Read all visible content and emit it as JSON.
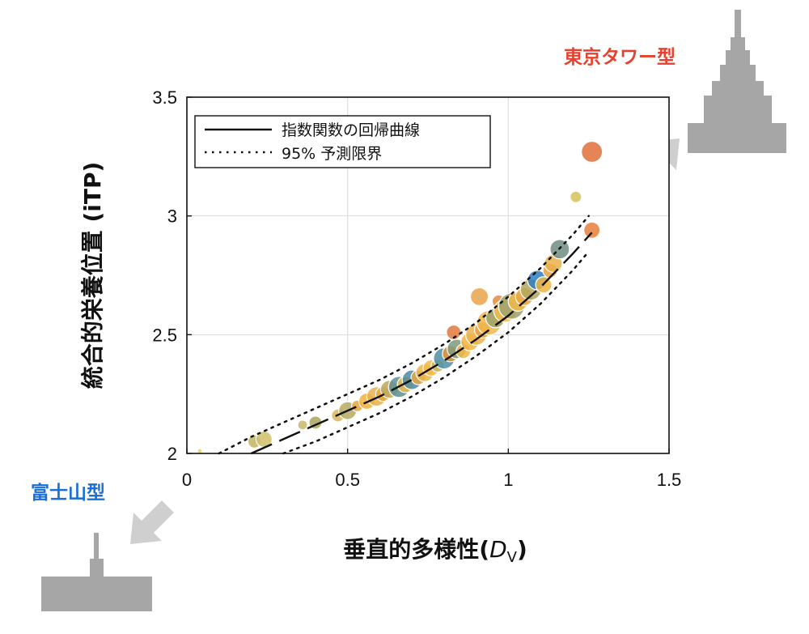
{
  "chart_data": {
    "type": "scatter",
    "xlabel": "垂直的多様性",
    "xlabel_symbol": "D",
    "xlabel_sub": "V",
    "ylabel": "統合的栄養位置 (iTP)",
    "xlim": [
      0,
      1.5
    ],
    "ylim": [
      2,
      3.5
    ],
    "x_ticks": [
      "0",
      "0.5",
      "1",
      "1.5"
    ],
    "x_tick_values": [
      0,
      0.5,
      1,
      1.5
    ],
    "y_ticks": [
      "2",
      "2.5",
      "3",
      "3.5"
    ],
    "y_tick_values": [
      2,
      2.5,
      3,
      3.5
    ],
    "grid": true,
    "legend_position": "top-left",
    "legend": [
      {
        "label": "指数関数の回帰曲線",
        "style": "solid"
      },
      {
        "label": "95% 予測限界",
        "style": "dotted"
      }
    ],
    "regression_curve": {
      "x": [
        0.2,
        0.3,
        0.4,
        0.5,
        0.6,
        0.7,
        0.8,
        0.9,
        1.0,
        1.1,
        1.2,
        1.26
      ],
      "y": [
        2.0,
        2.06,
        2.12,
        2.18,
        2.24,
        2.31,
        2.39,
        2.48,
        2.58,
        2.7,
        2.84,
        2.93
      ]
    },
    "prediction_upper": {
      "x": [
        0.1,
        0.2,
        0.3,
        0.4,
        0.5,
        0.6,
        0.7,
        0.8,
        0.9,
        1.0,
        1.1,
        1.2,
        1.25
      ],
      "y": [
        2.0,
        2.07,
        2.13,
        2.19,
        2.25,
        2.31,
        2.38,
        2.46,
        2.55,
        2.66,
        2.78,
        2.92,
        3.0
      ]
    },
    "prediction_lower": {
      "x": [
        0.3,
        0.4,
        0.5,
        0.6,
        0.7,
        0.8,
        0.9,
        1.0,
        1.1,
        1.2,
        1.25
      ],
      "y": [
        2.0,
        2.05,
        2.11,
        2.17,
        2.24,
        2.32,
        2.41,
        2.51,
        2.63,
        2.77,
        2.85
      ]
    },
    "points": [
      {
        "x": 0.04,
        "y": 2.01,
        "r": 3,
        "color": "#e8cf6a"
      },
      {
        "x": 0.21,
        "y": 2.05,
        "r": 8,
        "color": "#c4b45a"
      },
      {
        "x": 0.24,
        "y": 2.06,
        "r": 10,
        "color": "#cfc06a"
      },
      {
        "x": 0.36,
        "y": 2.12,
        "r": 6,
        "color": "#c8b86a"
      },
      {
        "x": 0.4,
        "y": 2.13,
        "r": 8,
        "color": "#a9a45c"
      },
      {
        "x": 0.47,
        "y": 2.16,
        "r": 8,
        "color": "#d8b65a"
      },
      {
        "x": 0.5,
        "y": 2.18,
        "r": 11,
        "color": "#b4ab60"
      },
      {
        "x": 0.53,
        "y": 2.2,
        "r": 7,
        "color": "#e8a23c"
      },
      {
        "x": 0.56,
        "y": 2.22,
        "r": 10,
        "color": "#f1b23a"
      },
      {
        "x": 0.59,
        "y": 2.24,
        "r": 12,
        "color": "#e8b04a"
      },
      {
        "x": 0.61,
        "y": 2.25,
        "r": 9,
        "color": "#eaa63e"
      },
      {
        "x": 0.63,
        "y": 2.27,
        "r": 11,
        "color": "#c0a85a"
      },
      {
        "x": 0.66,
        "y": 2.28,
        "r": 13,
        "color": "#5e8f93"
      },
      {
        "x": 0.68,
        "y": 2.29,
        "r": 10,
        "color": "#f0b845"
      },
      {
        "x": 0.7,
        "y": 2.31,
        "r": 12,
        "color": "#4c8aa2"
      },
      {
        "x": 0.72,
        "y": 2.32,
        "r": 9,
        "color": "#e8a843"
      },
      {
        "x": 0.74,
        "y": 2.34,
        "r": 11,
        "color": "#eab447"
      },
      {
        "x": 0.76,
        "y": 2.36,
        "r": 10,
        "color": "#f2ba4a"
      },
      {
        "x": 0.78,
        "y": 2.37,
        "r": 8,
        "color": "#c8b464"
      },
      {
        "x": 0.8,
        "y": 2.4,
        "r": 13,
        "color": "#4e8fa4"
      },
      {
        "x": 0.82,
        "y": 2.42,
        "r": 10,
        "color": "#e49838"
      },
      {
        "x": 0.83,
        "y": 2.51,
        "r": 9,
        "color": "#e07a3c"
      },
      {
        "x": 0.84,
        "y": 2.44,
        "r": 12,
        "color": "#7e9a7c"
      },
      {
        "x": 0.86,
        "y": 2.43,
        "r": 9,
        "color": "#f0b848"
      },
      {
        "x": 0.88,
        "y": 2.47,
        "r": 11,
        "color": "#f1b33f"
      },
      {
        "x": 0.9,
        "y": 2.5,
        "r": 13,
        "color": "#eab44b"
      },
      {
        "x": 0.92,
        "y": 2.52,
        "r": 10,
        "color": "#e4a244"
      },
      {
        "x": 0.91,
        "y": 2.66,
        "r": 11,
        "color": "#e8a44a"
      },
      {
        "x": 0.94,
        "y": 2.55,
        "r": 15,
        "color": "#f0b64b"
      },
      {
        "x": 0.96,
        "y": 2.57,
        "r": 12,
        "color": "#9ea36a"
      },
      {
        "x": 0.97,
        "y": 2.64,
        "r": 8,
        "color": "#e58a3c"
      },
      {
        "x": 0.99,
        "y": 2.6,
        "r": 14,
        "color": "#f2bc4e"
      },
      {
        "x": 1.01,
        "y": 2.62,
        "r": 16,
        "color": "#9ea06a"
      },
      {
        "x": 1.03,
        "y": 2.64,
        "r": 12,
        "color": "#f0b848"
      },
      {
        "x": 1.05,
        "y": 2.66,
        "r": 11,
        "color": "#e8a843"
      },
      {
        "x": 1.07,
        "y": 2.69,
        "r": 13,
        "color": "#b2a85e"
      },
      {
        "x": 1.09,
        "y": 2.73,
        "r": 12,
        "color": "#2d7ebf"
      },
      {
        "x": 1.11,
        "y": 2.71,
        "r": 10,
        "color": "#f0b444"
      },
      {
        "x": 1.13,
        "y": 2.77,
        "r": 9,
        "color": "#e8a040"
      },
      {
        "x": 1.14,
        "y": 2.8,
        "r": 11,
        "color": "#eab04a"
      },
      {
        "x": 1.16,
        "y": 2.86,
        "r": 12,
        "color": "#6e8c82"
      },
      {
        "x": 1.21,
        "y": 3.08,
        "r": 7,
        "color": "#d8c05a"
      },
      {
        "x": 1.26,
        "y": 2.94,
        "r": 10,
        "color": "#e67f3a"
      },
      {
        "x": 1.26,
        "y": 3.27,
        "r": 13,
        "color": "#e0703a"
      }
    ]
  },
  "annotations": {
    "top_right_label": "東京タワー型",
    "top_right_color": "#e8402e",
    "bottom_left_label": "富士山型",
    "bottom_left_color": "#1a6fd6",
    "silhouette_color": "#a6a6a6"
  }
}
